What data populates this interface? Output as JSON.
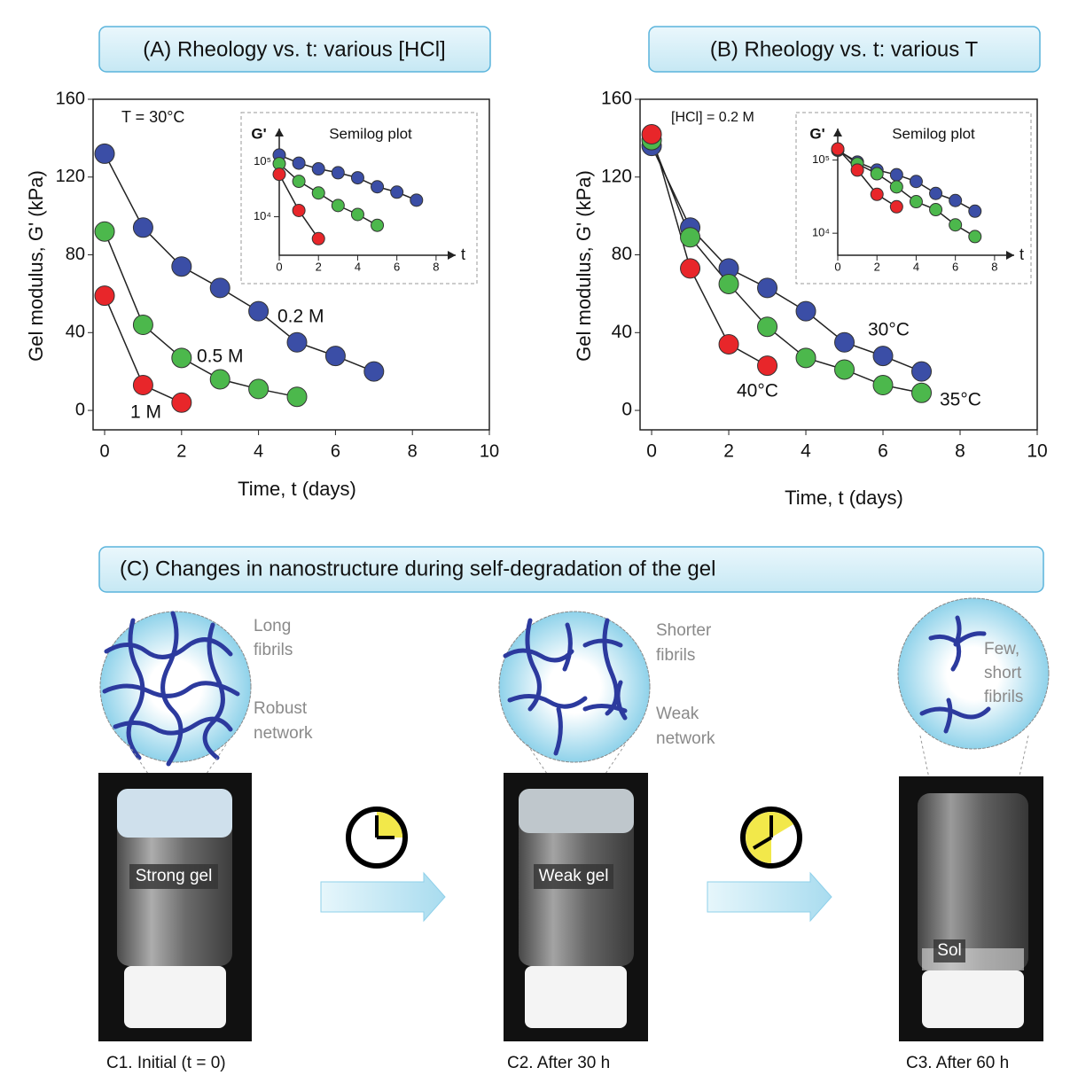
{
  "chart_data": [
    {
      "type": "line",
      "title": "(A) Rheology vs. t: various [HCl]",
      "ylabel": "Gel modulus, G' (kPa)",
      "xlabel": "Time, t (days)",
      "annotation": "T = 30°C",
      "xlim": [
        -0.3,
        10
      ],
      "xticks": [
        0,
        2,
        4,
        6,
        8,
        10
      ],
      "ylim": [
        -10,
        160
      ],
      "yticks": [
        0,
        40,
        80,
        120,
        160
      ],
      "grid": false,
      "series": [
        {
          "name": "0.2 M",
          "color": "#3b4ea6",
          "x": [
            0,
            1,
            2,
            3,
            4,
            5,
            6,
            7
          ],
          "values": [
            132,
            94,
            74,
            63,
            51,
            35,
            28,
            20
          ]
        },
        {
          "name": "0.5 M",
          "color": "#4cb84c",
          "x": [
            0,
            1,
            2,
            3,
            4,
            5
          ],
          "values": [
            92,
            44,
            27,
            16,
            11,
            7
          ]
        },
        {
          "name": "1 M",
          "color": "#e8262a",
          "x": [
            0,
            1,
            2
          ],
          "values": [
            59,
            13,
            4
          ]
        }
      ]
    },
    {
      "type": "line",
      "title": "(B) Rheology vs. t: various T",
      "ylabel": "Gel modulus, G' (kPa)",
      "xlabel": "Time, t (days)",
      "annotation": "[HCl] = 0.2 M",
      "xlim": [
        -0.3,
        10
      ],
      "xticks": [
        0,
        2,
        4,
        6,
        8,
        10
      ],
      "ylim": [
        -10,
        160
      ],
      "yticks": [
        0,
        40,
        80,
        120,
        160
      ],
      "grid": false,
      "series": [
        {
          "name": "30°C",
          "color": "#3b4ea6",
          "x": [
            0,
            1,
            2,
            3,
            4,
            5,
            6,
            7
          ],
          "values": [
            136,
            94,
            73,
            63,
            51,
            35,
            28,
            20
          ]
        },
        {
          "name": "35°C",
          "color": "#4cb84c",
          "x": [
            0,
            1,
            2,
            3,
            4,
            5,
            6,
            7
          ],
          "values": [
            139,
            89,
            65,
            43,
            27,
            21,
            13,
            9
          ]
        },
        {
          "name": "40°C",
          "color": "#e8262a",
          "x": [
            0,
            1,
            2,
            3
          ],
          "values": [
            142,
            73,
            34,
            23
          ]
        }
      ]
    },
    {
      "type": "line",
      "title": "Semilog plot",
      "ylabel": "G'",
      "xlabel": "t",
      "log_y": true,
      "xlim": [
        0,
        9
      ],
      "xticks": [
        0,
        2,
        4,
        6,
        8
      ],
      "ylim": [
        2000,
        400000
      ],
      "yticks": [
        {
          "value": 10000,
          "label": "10⁴"
        },
        {
          "value": 100000,
          "label": "10⁵"
        }
      ],
      "series": [
        {
          "color": "#3b4ea6",
          "x": [
            0,
            1,
            2,
            3,
            4,
            5,
            6,
            7
          ],
          "values": [
            132000,
            94000,
            74000,
            63000,
            51000,
            35000,
            28000,
            20000
          ]
        },
        {
          "color": "#4cb84c",
          "x": [
            0,
            1,
            2,
            3,
            4,
            5
          ],
          "values": [
            92000,
            44000,
            27000,
            16000,
            11000,
            7000
          ]
        },
        {
          "color": "#e8262a",
          "x": [
            0,
            1,
            2
          ],
          "values": [
            59000,
            13000,
            4000
          ]
        }
      ]
    },
    {
      "type": "line",
      "title": "Semilog plot",
      "ylabel": "G'",
      "xlabel": "t",
      "log_y": true,
      "xlim": [
        0,
        9
      ],
      "xticks": [
        0,
        2,
        4,
        6,
        8
      ],
      "ylim": [
        5000,
        270000
      ],
      "yticks": [
        {
          "value": 10000,
          "label": "10⁴"
        },
        {
          "value": 100000,
          "label": "10⁵"
        }
      ],
      "series": [
        {
          "color": "#3b4ea6",
          "x": [
            0,
            1,
            2,
            3,
            4,
            5,
            6,
            7
          ],
          "values": [
            136000,
            94000,
            73000,
            63000,
            51000,
            35000,
            28000,
            20000
          ]
        },
        {
          "color": "#4cb84c",
          "x": [
            0,
            1,
            2,
            3,
            4,
            5,
            6,
            7
          ],
          "values": [
            139000,
            89000,
            65000,
            43000,
            27000,
            21000,
            13000,
            9000
          ]
        },
        {
          "color": "#e8262a",
          "x": [
            0,
            1,
            2,
            3
          ],
          "values": [
            142000,
            73000,
            34000,
            23000
          ]
        }
      ]
    }
  ],
  "panel_c": {
    "title": "(C) Changes in nanostructure during self-degradation of the gel",
    "stages": [
      {
        "label": "Strong gel",
        "caption": "C1. Initial (t = 0)",
        "notes": [
          [
            "Long",
            "fibrils"
          ],
          [
            "Robust",
            "network"
          ]
        ]
      },
      {
        "label": "Weak gel",
        "caption": "C2. After 30 h",
        "notes": [
          [
            "Shorter",
            "fibrils"
          ],
          [
            "Weak",
            "network"
          ]
        ]
      },
      {
        "label": "Sol",
        "caption": "C3. After 60 h",
        "notes": [
          [
            "Few,",
            "short",
            "fibrils"
          ]
        ]
      }
    ]
  }
}
